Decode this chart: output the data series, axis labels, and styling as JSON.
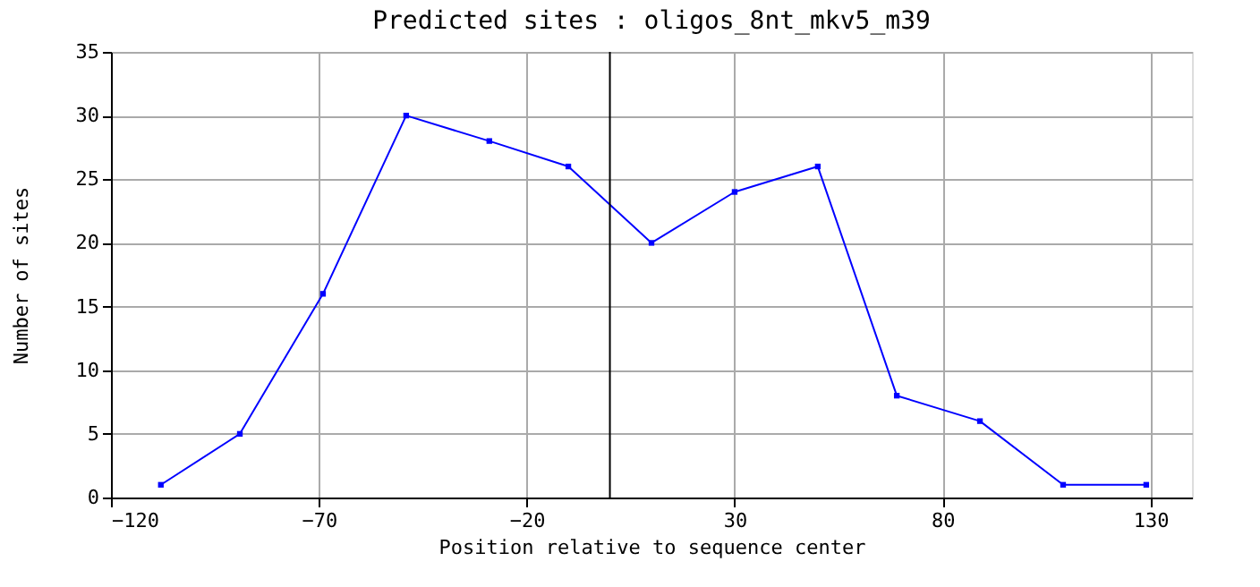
{
  "chart_data": {
    "type": "line",
    "title": "Predicted sites : oligos_8nt_mkv5_m39",
    "xlabel": "Position relative to sequence center",
    "ylabel": "Number of sites",
    "x": [
      -108,
      -89,
      -69,
      -49,
      -29,
      -10,
      10,
      30,
      50,
      69,
      89,
      109,
      129
    ],
    "series": [
      {
        "color": "#0000ff",
        "values": [
          1,
          5,
          16,
          30,
          28,
          26,
          20,
          24,
          26,
          8,
          6,
          1,
          1
        ]
      }
    ],
    "xlim": [
      -120,
      140
    ],
    "xticks": [
      -120,
      -70,
      -20,
      30,
      80,
      130
    ],
    "ylim": [
      0,
      35
    ],
    "yticks": [
      0,
      5,
      10,
      15,
      20,
      25,
      30,
      35
    ],
    "ref_lines": [
      {
        "axis": "x",
        "value": 0,
        "color": "#000000"
      }
    ],
    "grid": true,
    "marker": "square",
    "line_style": "solid"
  }
}
